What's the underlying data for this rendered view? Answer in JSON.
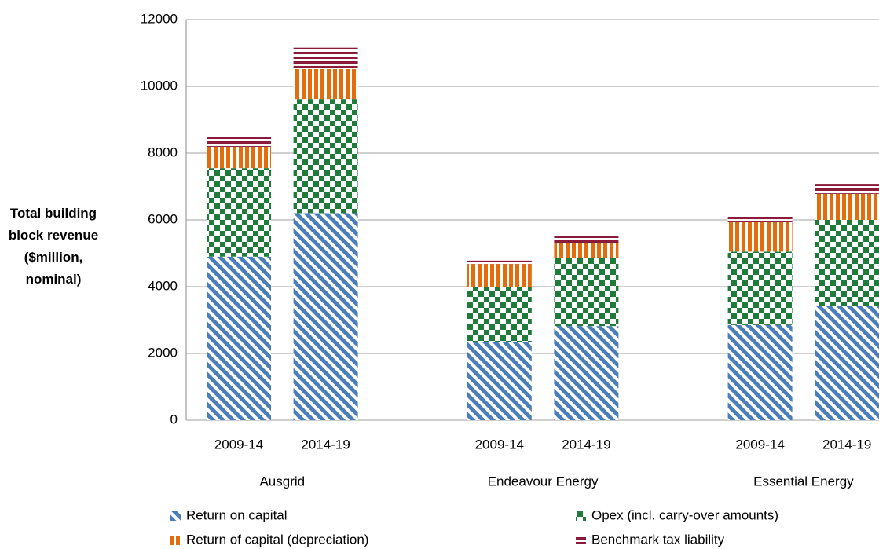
{
  "chart_data": {
    "type": "stacked_bar",
    "y_label": "Total building block revenue ($million, nominal)",
    "groups": [
      "Ausgrid",
      "Endeavour Energy",
      "Essential Energy"
    ],
    "categories": [
      "2009-14",
      "2014-19",
      "2009-14",
      "2014-19",
      "2009-14",
      "2014-19"
    ],
    "series": [
      {
        "name": "Return on capital",
        "color": "#4a7ebb",
        "pattern": "diagonal",
        "values": [
          4900,
          6200,
          2350,
          2820,
          2850,
          3430
        ]
      },
      {
        "name": "Opex (incl. carry-over amounts)",
        "color": "#1e7b3a",
        "pattern": "checker",
        "values": [
          2650,
          3420,
          1630,
          2030,
          2200,
          2570
        ]
      },
      {
        "name": "Return of capital (depreciation)",
        "color": "#e46c0a",
        "pattern": "vertical",
        "values": [
          640,
          900,
          700,
          450,
          880,
          780
        ]
      },
      {
        "name": "Benchmark tax liability",
        "color": "#8b1a3a",
        "pattern": "horizontal",
        "values": [
          300,
          640,
          100,
          300,
          170,
          300
        ]
      }
    ],
    "ylim": [
      0,
      12000
    ],
    "yticks": [
      0,
      2000,
      4000,
      6000,
      8000,
      10000,
      12000
    ],
    "grid": true,
    "legend": "bottom"
  }
}
